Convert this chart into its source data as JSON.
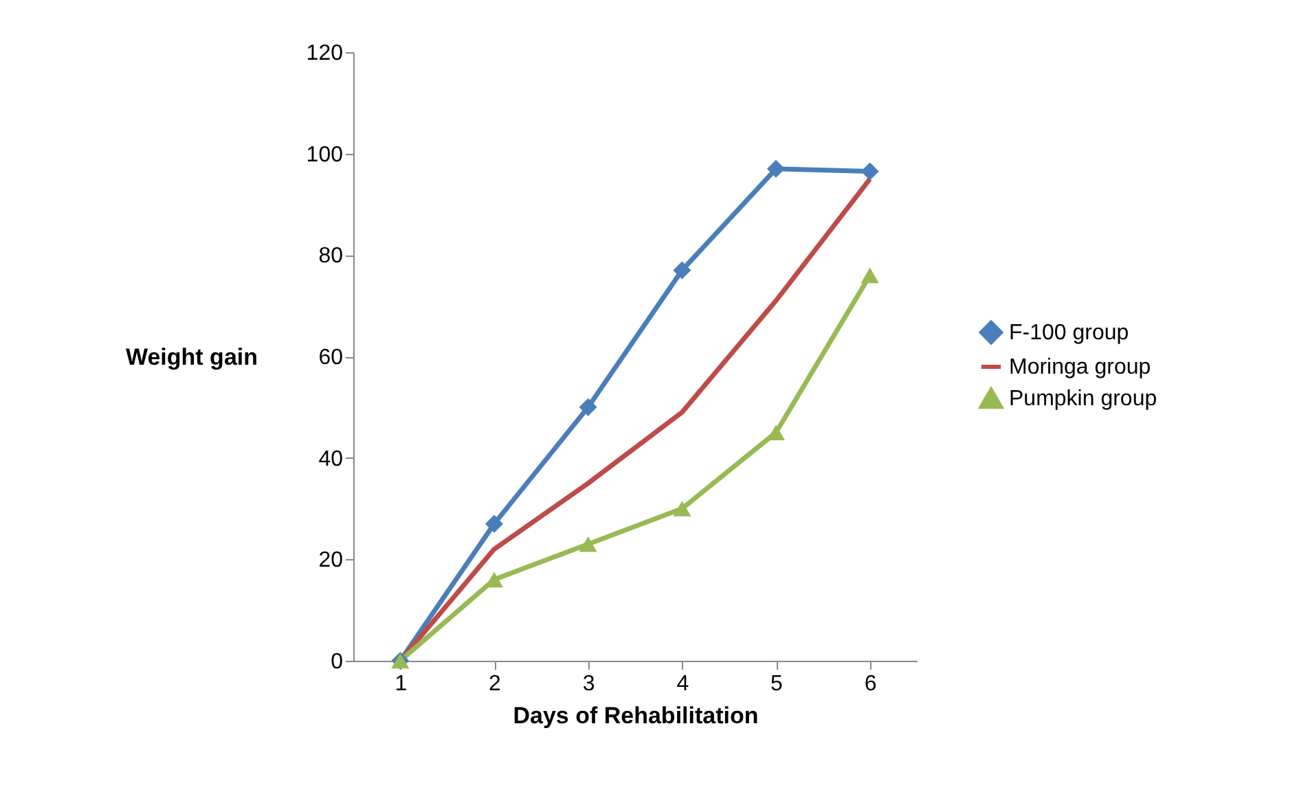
{
  "chart_data": {
    "type": "line",
    "xlabel": "Days of Rehabilitation",
    "ylabel": "Weight gain",
    "categories": [
      "1",
      "2",
      "3",
      "4",
      "5",
      "6"
    ],
    "ylim": [
      0,
      120
    ],
    "yticks": [
      0,
      20,
      40,
      60,
      80,
      100,
      120
    ],
    "grid": false,
    "legend": "right",
    "series": [
      {
        "name": "F-100 group",
        "color": "#4a7ebb",
        "marker": "diamond",
        "values": [
          0,
          27,
          50,
          77,
          97,
          96.5
        ]
      },
      {
        "name": "Moringa group",
        "color": "#be4b48",
        "marker": "none",
        "values": [
          0,
          22,
          35,
          49,
          71,
          95
        ]
      },
      {
        "name": "Pumpkin group",
        "color": "#98b954",
        "marker": "triangle",
        "values": [
          0,
          16,
          23,
          30,
          45,
          76
        ]
      }
    ]
  }
}
